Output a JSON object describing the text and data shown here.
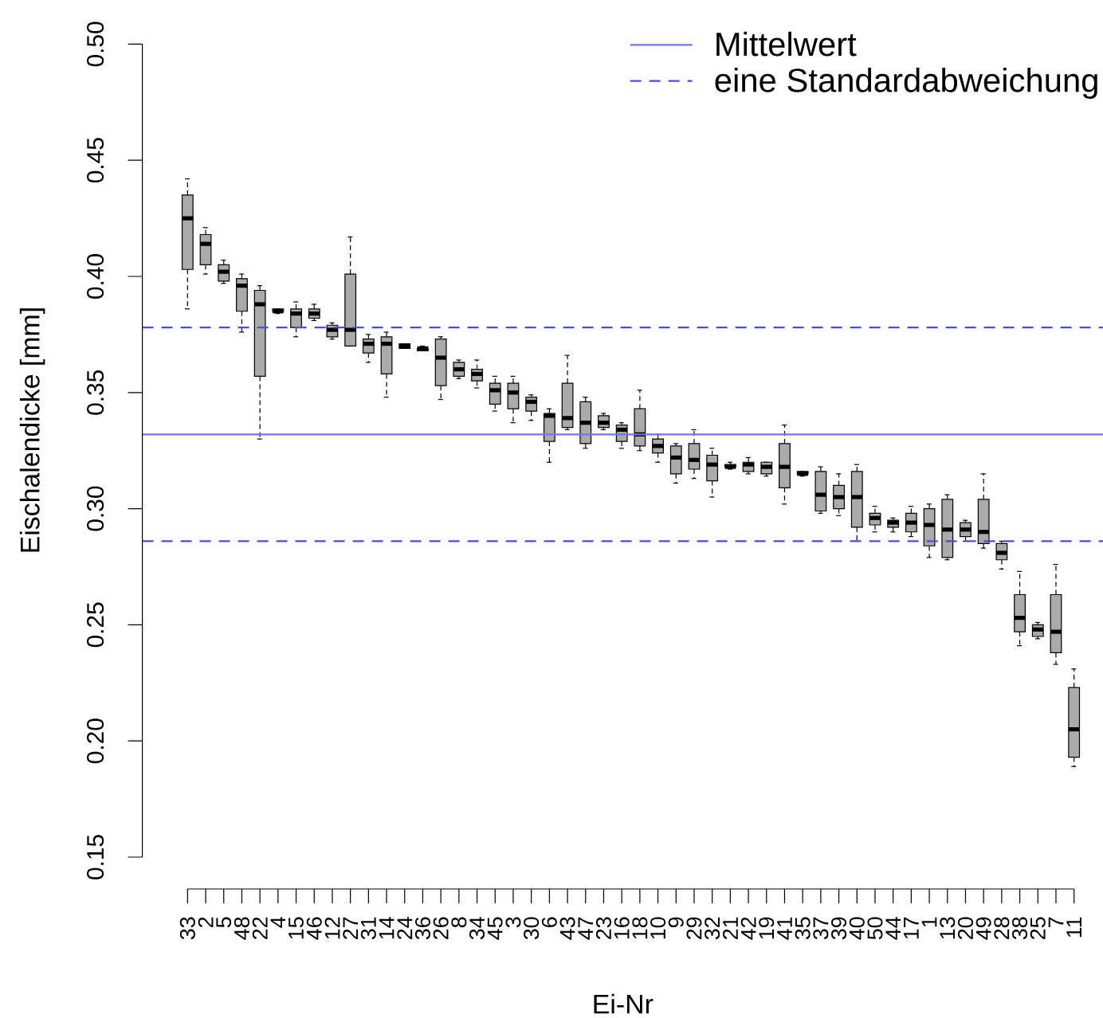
{
  "chart_data": {
    "type": "box",
    "xlabel": "Ei-Nr",
    "ylabel": "Eischalendicke [mm]",
    "categories": [
      "33",
      "2",
      "5",
      "48",
      "22",
      "4",
      "15",
      "46",
      "12",
      "27",
      "31",
      "14",
      "24",
      "36",
      "26",
      "8",
      "34",
      "45",
      "3",
      "30",
      "6",
      "43",
      "47",
      "23",
      "16",
      "18",
      "10",
      "9",
      "29",
      "32",
      "21",
      "42",
      "19",
      "41",
      "35",
      "37",
      "39",
      "40",
      "50",
      "44",
      "17",
      "1",
      "13",
      "20",
      "49",
      "28",
      "38",
      "25",
      "7",
      "11"
    ],
    "series": [
      {
        "color": "#aaaaaa",
        "boxes": [
          {
            "low": 0.386,
            "q1": 0.403,
            "median": 0.425,
            "q3": 0.435,
            "high": 0.442
          },
          {
            "low": 0.401,
            "q1": 0.405,
            "median": 0.414,
            "q3": 0.418,
            "high": 0.421
          },
          {
            "low": 0.397,
            "q1": 0.398,
            "median": 0.402,
            "q3": 0.405,
            "high": 0.407
          },
          {
            "low": 0.376,
            "q1": 0.385,
            "median": 0.396,
            "q3": 0.399,
            "high": 0.401
          },
          {
            "low": 0.33,
            "q1": 0.357,
            "median": 0.388,
            "q3": 0.394,
            "high": 0.396
          },
          {
            "low": 0.384,
            "q1": 0.385,
            "median": 0.385,
            "q3": 0.386,
            "high": 0.386
          },
          {
            "low": 0.374,
            "q1": 0.378,
            "median": 0.384,
            "q3": 0.386,
            "high": 0.389
          },
          {
            "low": 0.381,
            "q1": 0.382,
            "median": 0.384,
            "q3": 0.386,
            "high": 0.388
          },
          {
            "low": 0.373,
            "q1": 0.374,
            "median": 0.377,
            "q3": 0.379,
            "high": 0.38
          },
          {
            "low": 0.37,
            "q1": 0.37,
            "median": 0.377,
            "q3": 0.401,
            "high": 0.417
          },
          {
            "low": 0.363,
            "q1": 0.367,
            "median": 0.371,
            "q3": 0.373,
            "high": 0.375
          },
          {
            "low": 0.348,
            "q1": 0.358,
            "median": 0.371,
            "q3": 0.374,
            "high": 0.376
          },
          {
            "low": 0.369,
            "q1": 0.369,
            "median": 0.37,
            "q3": 0.371,
            "high": 0.371
          },
          {
            "low": 0.368,
            "q1": 0.368,
            "median": 0.369,
            "q3": 0.369,
            "high": 0.37
          },
          {
            "low": 0.347,
            "q1": 0.353,
            "median": 0.365,
            "q3": 0.373,
            "high": 0.374
          },
          {
            "low": 0.356,
            "q1": 0.357,
            "median": 0.36,
            "q3": 0.363,
            "high": 0.364
          },
          {
            "low": 0.352,
            "q1": 0.355,
            "median": 0.358,
            "q3": 0.36,
            "high": 0.364
          },
          {
            "low": 0.342,
            "q1": 0.345,
            "median": 0.351,
            "q3": 0.354,
            "high": 0.357
          },
          {
            "low": 0.337,
            "q1": 0.343,
            "median": 0.35,
            "q3": 0.354,
            "high": 0.357
          },
          {
            "low": 0.338,
            "q1": 0.342,
            "median": 0.346,
            "q3": 0.348,
            "high": 0.349
          },
          {
            "low": 0.32,
            "q1": 0.329,
            "median": 0.34,
            "q3": 0.341,
            "high": 0.343
          },
          {
            "low": 0.334,
            "q1": 0.335,
            "median": 0.339,
            "q3": 0.354,
            "high": 0.366
          },
          {
            "low": 0.326,
            "q1": 0.328,
            "median": 0.337,
            "q3": 0.346,
            "high": 0.348
          },
          {
            "low": 0.334,
            "q1": 0.335,
            "median": 0.337,
            "q3": 0.34,
            "high": 0.341
          },
          {
            "low": 0.326,
            "q1": 0.329,
            "median": 0.334,
            "q3": 0.336,
            "high": 0.337
          },
          {
            "low": 0.325,
            "q1": 0.327,
            "median": 0.332,
            "q3": 0.343,
            "high": 0.351
          },
          {
            "low": 0.32,
            "q1": 0.324,
            "median": 0.327,
            "q3": 0.33,
            "high": 0.332
          },
          {
            "low": 0.311,
            "q1": 0.315,
            "median": 0.322,
            "q3": 0.327,
            "high": 0.328
          },
          {
            "low": 0.313,
            "q1": 0.317,
            "median": 0.321,
            "q3": 0.328,
            "high": 0.334
          },
          {
            "low": 0.305,
            "q1": 0.312,
            "median": 0.319,
            "q3": 0.323,
            "high": 0.326
          },
          {
            "low": 0.317,
            "q1": 0.318,
            "median": 0.318,
            "q3": 0.319,
            "high": 0.32
          },
          {
            "low": 0.315,
            "q1": 0.316,
            "median": 0.319,
            "q3": 0.32,
            "high": 0.322
          },
          {
            "low": 0.314,
            "q1": 0.315,
            "median": 0.318,
            "q3": 0.32,
            "high": 0.32
          },
          {
            "low": 0.302,
            "q1": 0.309,
            "median": 0.318,
            "q3": 0.328,
            "high": 0.336
          },
          {
            "low": 0.314,
            "q1": 0.315,
            "median": 0.315,
            "q3": 0.316,
            "high": 0.316
          },
          {
            "low": 0.298,
            "q1": 0.299,
            "median": 0.306,
            "q3": 0.316,
            "high": 0.318
          },
          {
            "low": 0.297,
            "q1": 0.3,
            "median": 0.305,
            "q3": 0.31,
            "high": 0.315
          },
          {
            "low": 0.286,
            "q1": 0.292,
            "median": 0.305,
            "q3": 0.316,
            "high": 0.319
          },
          {
            "low": 0.29,
            "q1": 0.293,
            "median": 0.296,
            "q3": 0.298,
            "high": 0.301
          },
          {
            "low": 0.29,
            "q1": 0.292,
            "median": 0.294,
            "q3": 0.295,
            "high": 0.296
          },
          {
            "low": 0.288,
            "q1": 0.29,
            "median": 0.294,
            "q3": 0.298,
            "high": 0.301
          },
          {
            "low": 0.279,
            "q1": 0.284,
            "median": 0.293,
            "q3": 0.3,
            "high": 0.302
          },
          {
            "low": 0.278,
            "q1": 0.279,
            "median": 0.291,
            "q3": 0.304,
            "high": 0.306
          },
          {
            "low": 0.286,
            "q1": 0.288,
            "median": 0.291,
            "q3": 0.294,
            "high": 0.295
          },
          {
            "low": 0.283,
            "q1": 0.285,
            "median": 0.29,
            "q3": 0.304,
            "high": 0.315
          },
          {
            "low": 0.274,
            "q1": 0.278,
            "median": 0.281,
            "q3": 0.285,
            "high": 0.286
          },
          {
            "low": 0.241,
            "q1": 0.247,
            "median": 0.253,
            "q3": 0.263,
            "high": 0.273
          },
          {
            "low": 0.244,
            "q1": 0.245,
            "median": 0.248,
            "q3": 0.25,
            "high": 0.251
          },
          {
            "low": 0.233,
            "q1": 0.238,
            "median": 0.247,
            "q3": 0.263,
            "high": 0.276
          },
          {
            "low": 0.189,
            "q1": 0.193,
            "median": 0.205,
            "q3": 0.223,
            "high": 0.231
          }
        ]
      }
    ],
    "ylim": [
      0.15,
      0.5
    ],
    "yticks": [
      {
        "value": 0.15,
        "label": "0.15"
      },
      {
        "value": 0.2,
        "label": "0.20"
      },
      {
        "value": 0.25,
        "label": "0.25"
      },
      {
        "value": 0.3,
        "label": "0.30"
      },
      {
        "value": 0.35,
        "label": "0.35"
      },
      {
        "value": 0.4,
        "label": "0.40"
      },
      {
        "value": 0.45,
        "label": "0.45"
      },
      {
        "value": 0.5,
        "label": "0.50"
      }
    ],
    "ref_lines": [
      {
        "axis": "y",
        "value": 0.332,
        "label": "Mittelwert",
        "color": "#7474f2",
        "line_style": "solid"
      },
      {
        "axis": "y",
        "value": 0.378,
        "label": "eine Standardabweichung",
        "color": "#4c4ce0",
        "line_style": "dashed"
      },
      {
        "axis": "y",
        "value": 0.286,
        "color": "#4c4ce0",
        "line_style": "dashed"
      }
    ],
    "legend": "top right"
  }
}
